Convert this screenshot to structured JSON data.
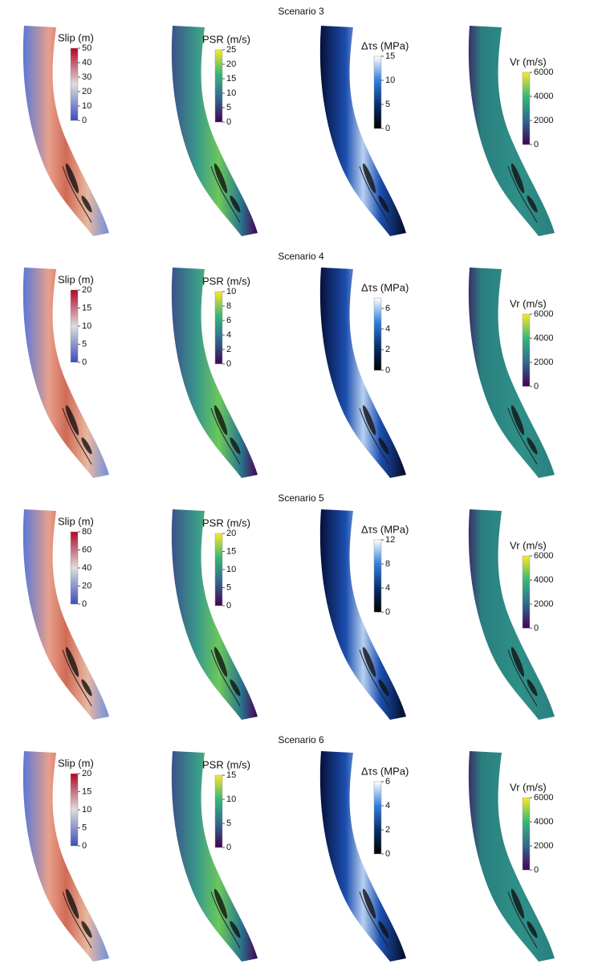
{
  "rows": [
    {
      "title": "Scenario 3",
      "panels": [
        {
          "label": "Slip (m)",
          "colormap": [
            "#3b4cc0",
            "#dddddd",
            "#b40426"
          ],
          "lim": [
            0,
            50
          ],
          "ticks": [
            0,
            10,
            20,
            30,
            40,
            50
          ]
        },
        {
          "label": "PSR (m/s)",
          "colormap": [
            "#440154",
            "#31688e",
            "#35b779",
            "#fde725"
          ],
          "lim": [
            0,
            25
          ],
          "ticks": [
            0,
            5,
            10,
            15,
            20,
            25
          ]
        },
        {
          "label": "Δτs (MPa)",
          "colormap": [
            "#000000",
            "#08306b",
            "#2f7fe0",
            "#ffffff"
          ],
          "lim": [
            0,
            15
          ],
          "ticks": [
            0,
            5,
            10,
            15
          ]
        },
        {
          "label": "Vr (m/s)",
          "colormap": [
            "#440154",
            "#31688e",
            "#35b779",
            "#fde725"
          ],
          "lim": [
            0,
            6000
          ],
          "ticks": [
            0,
            2000,
            4000,
            6000
          ]
        }
      ]
    },
    {
      "title": "Scenario 4",
      "panels": [
        {
          "label": "Slip (m)",
          "colormap": [
            "#3b4cc0",
            "#dddddd",
            "#b40426"
          ],
          "lim": [
            0,
            20
          ],
          "ticks": [
            0,
            5,
            10,
            15,
            20
          ]
        },
        {
          "label": "PSR (m/s)",
          "colormap": [
            "#440154",
            "#31688e",
            "#35b779",
            "#fde725"
          ],
          "lim": [
            0,
            10
          ],
          "ticks": [
            0,
            2,
            4,
            6,
            8,
            10
          ]
        },
        {
          "label": "Δτs (MPa)",
          "colormap": [
            "#000000",
            "#08306b",
            "#2f7fe0",
            "#ffffff"
          ],
          "lim": [
            0,
            7
          ],
          "ticks": [
            0,
            2,
            4,
            6
          ]
        },
        {
          "label": "Vr (m/s)",
          "colormap": [
            "#440154",
            "#31688e",
            "#35b779",
            "#fde725"
          ],
          "lim": [
            0,
            6000
          ],
          "ticks": [
            0,
            2000,
            4000,
            6000
          ]
        }
      ]
    },
    {
      "title": "Scenario 5",
      "panels": [
        {
          "label": "Slip (m)",
          "colormap": [
            "#3b4cc0",
            "#dddddd",
            "#b40426"
          ],
          "lim": [
            0,
            80
          ],
          "ticks": [
            0,
            20,
            40,
            60,
            80
          ]
        },
        {
          "label": "PSR (m/s)",
          "colormap": [
            "#440154",
            "#31688e",
            "#35b779",
            "#fde725"
          ],
          "lim": [
            0,
            20
          ],
          "ticks": [
            0,
            5,
            10,
            15,
            20
          ]
        },
        {
          "label": "Δτs (MPa)",
          "colormap": [
            "#000000",
            "#08306b",
            "#2f7fe0",
            "#ffffff"
          ],
          "lim": [
            0,
            12
          ],
          "ticks": [
            0,
            4,
            8,
            12
          ]
        },
        {
          "label": "Vr (m/s)",
          "colormap": [
            "#440154",
            "#31688e",
            "#35b779",
            "#fde725"
          ],
          "lim": [
            0,
            6000
          ],
          "ticks": [
            0,
            2000,
            4000,
            6000
          ]
        }
      ]
    },
    {
      "title": "Scenario 6",
      "panels": [
        {
          "label": "Slip (m)",
          "colormap": [
            "#3b4cc0",
            "#dddddd",
            "#b40426"
          ],
          "lim": [
            0,
            20
          ],
          "ticks": [
            0,
            5,
            10,
            15,
            20
          ]
        },
        {
          "label": "PSR (m/s)",
          "colormap": [
            "#440154",
            "#31688e",
            "#35b779",
            "#fde725"
          ],
          "lim": [
            0,
            15
          ],
          "ticks": [
            0,
            5,
            10,
            15
          ]
        },
        {
          "label": "Δτs (MPa)",
          "colormap": [
            "#000000",
            "#08306b",
            "#2f7fe0",
            "#ffffff"
          ],
          "lim": [
            0,
            6
          ],
          "ticks": [
            0,
            2,
            4,
            6
          ]
        },
        {
          "label": "Vr (m/s)",
          "colormap": [
            "#440154",
            "#31688e",
            "#35b779",
            "#fde725"
          ],
          "lim": [
            0,
            6000
          ],
          "ticks": [
            0,
            2000,
            4000,
            6000
          ]
        }
      ]
    }
  ]
}
